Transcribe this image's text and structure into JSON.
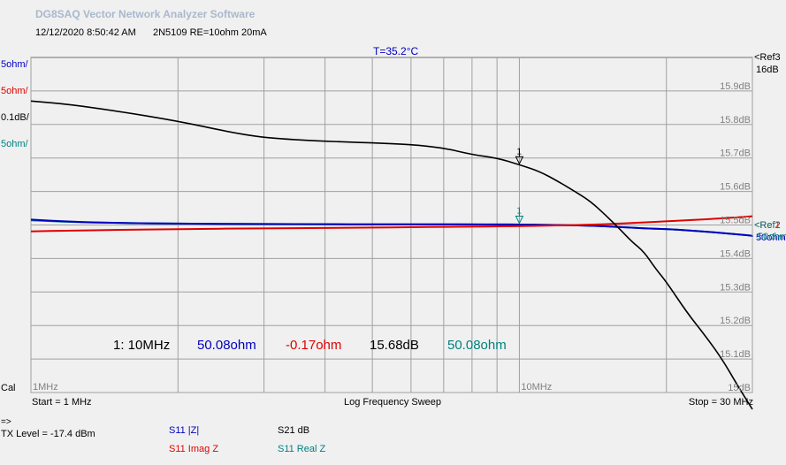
{
  "header": {
    "app_title": "DG8SAQ Vector Network Analyzer Software",
    "timestamp": "12/12/2020   8:50:42 AM",
    "dut": "2N5109 RE=10ohm 20mA",
    "temperature": "T=35.2°C"
  },
  "left_scale": {
    "z_mag": "5ohm/",
    "imag_z": "5ohm/",
    "s21_db": "0.1dB/",
    "real_z": "5ohm/"
  },
  "right_scale": {
    "top_ref_label": "<Ref3",
    "top_ref_value": "16dB",
    "ref_s11_label": "<Ref1",
    "ref_s11_red": "<Ref2",
    "ref_s11_value": "50ohm",
    "ref_s11_value_teal": "50ohm"
  },
  "marker": {
    "number": "1",
    "readout_prefix": "1: 10MHz",
    "z_mag": "50.08ohm",
    "imag_z": "-0.17ohm",
    "s21": "15.68dB",
    "real_z": "50.08ohm"
  },
  "footer": {
    "cal_label": "Cal",
    "start": "Start = 1 MHz",
    "sweep": "Log Frequency Sweep",
    "stop": "Stop = 30 MHz",
    "arrow": "=>",
    "tx_level": "TX Level = -17.4 dBm"
  },
  "legend": {
    "z_mag": "S11  |Z|",
    "s21": "S21  dB",
    "imag_z": "S11  Imag Z",
    "real_z": "S11  Real Z"
  },
  "colors": {
    "z_mag": "#0000c0",
    "imag_z": "#e00000",
    "s21": "#000000",
    "real_z": "#008080",
    "plot_bg": "#f0f0f0",
    "grid": "#a0a0a0"
  },
  "chart_data": {
    "type": "line",
    "title": "T=35.2°C",
    "xlabel": "Log Frequency Sweep",
    "x_scale": "log",
    "x_range_mhz": [
      1,
      30
    ],
    "x_tick_labels": [
      "1MHz",
      "10MHz"
    ],
    "x_ticks_mhz": [
      1,
      10
    ],
    "x_grid_mhz": [
      1,
      2,
      3,
      4,
      5,
      6,
      7,
      8,
      9,
      10,
      20,
      30
    ],
    "y_ticks_db": [
      15.9,
      15.8,
      15.7,
      15.6,
      15.5,
      15.4,
      15.3,
      15.2,
      15.1,
      15.0
    ],
    "y_tick_labels": [
      "15.9dB",
      "15.8dB",
      "15.7dB",
      "15.6dB",
      "15.5dB",
      "15.4dB",
      "15.3dB",
      "15.2dB",
      "15.1dB",
      "15dB"
    ],
    "y_range_db": [
      15.0,
      16.0
    ],
    "grid": true,
    "marker_x_mhz": 10,
    "series": [
      {
        "name": "S21  dB",
        "key": "s21",
        "unit": "dB",
        "x": [
          1,
          1.2,
          1.5,
          2,
          2.5,
          3,
          4,
          5,
          6,
          7,
          8,
          9,
          10,
          11,
          12,
          13,
          14,
          15,
          16,
          17,
          18,
          19,
          20,
          22,
          24,
          26,
          28,
          30
        ],
        "y": [
          15.87,
          15.86,
          15.84,
          15.81,
          15.78,
          15.76,
          15.75,
          15.745,
          15.74,
          15.73,
          15.71,
          15.7,
          15.68,
          15.66,
          15.63,
          15.6,
          15.57,
          15.53,
          15.49,
          15.45,
          15.42,
          15.37,
          15.33,
          15.24,
          15.17,
          15.1,
          15.02,
          14.95
        ]
      },
      {
        "name": "S11  |Z|",
        "key": "z_mag",
        "unit": "ohm",
        "x": [
          1,
          1.2,
          1.5,
          2,
          3,
          4,
          5,
          6,
          7,
          8,
          9,
          10,
          12,
          14,
          16,
          18,
          20,
          22,
          24,
          26,
          28,
          30
        ],
        "y": [
          50.8,
          50.5,
          50.3,
          50.2,
          50.15,
          50.12,
          50.1,
          50.1,
          50.09,
          50.09,
          50.08,
          50.08,
          50.0,
          49.9,
          49.7,
          49.5,
          49.4,
          49.2,
          49.0,
          48.8,
          48.6,
          48.4
        ]
      },
      {
        "name": "S11  Real Z",
        "key": "real_z",
        "unit": "ohm",
        "x": [
          1,
          1.2,
          1.5,
          2,
          3,
          4,
          5,
          6,
          7,
          8,
          9,
          10,
          12,
          14,
          16,
          18,
          20,
          22,
          24,
          26,
          28,
          30
        ],
        "y": [
          50.7,
          50.45,
          50.3,
          50.2,
          50.15,
          50.12,
          50.1,
          50.1,
          50.09,
          50.09,
          50.08,
          50.08,
          50.0,
          49.9,
          49.7,
          49.5,
          49.4,
          49.2,
          49.0,
          48.8,
          48.6,
          48.4
        ]
      },
      {
        "name": "S11  Imag Z",
        "key": "imag_z",
        "unit": "ohm",
        "x": [
          1,
          1.2,
          1.5,
          2,
          3,
          4,
          5,
          6,
          7,
          8,
          9,
          10,
          12,
          14,
          16,
          18,
          20,
          22,
          24,
          26,
          28,
          30
        ],
        "y": [
          -0.95,
          -0.85,
          -0.72,
          -0.62,
          -0.5,
          -0.45,
          -0.38,
          -0.34,
          -0.28,
          -0.24,
          -0.2,
          -0.17,
          -0.08,
          0.05,
          0.2,
          0.38,
          0.55,
          0.7,
          0.85,
          1.0,
          1.15,
          1.3
        ]
      }
    ]
  }
}
